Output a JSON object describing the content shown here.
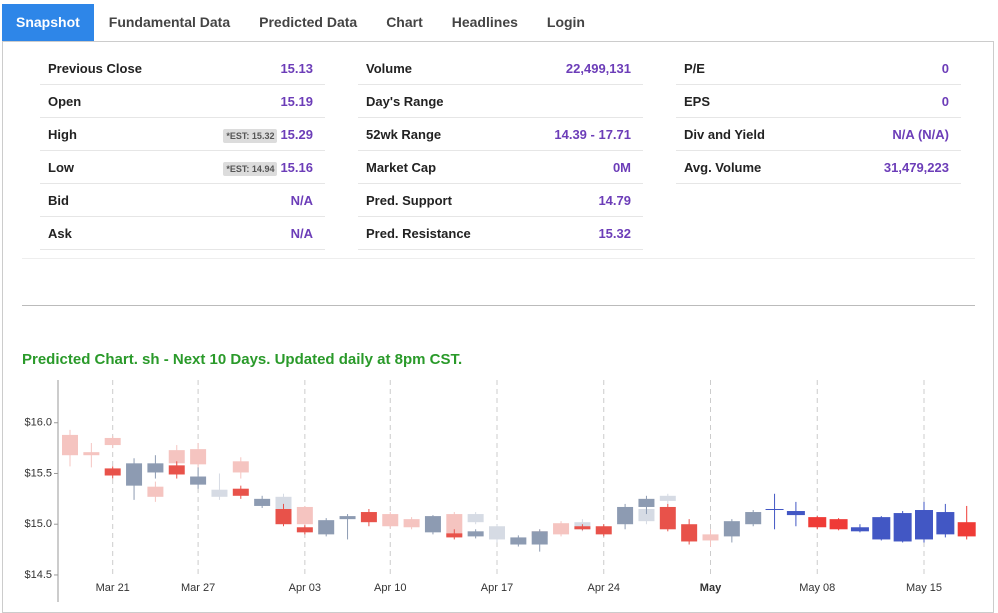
{
  "tabs": [
    "Snapshot",
    "Fundamental Data",
    "Predicted Data",
    "Chart",
    "Headlines",
    "Login"
  ],
  "active_tab": 0,
  "stats": [
    [
      {
        "label": "Previous Close",
        "value": "15.13"
      },
      {
        "label": "Open",
        "value": "15.19"
      },
      {
        "label": "High",
        "value": "15.29",
        "note": "*EST: 15.32"
      },
      {
        "label": "Low",
        "value": "15.16",
        "note": "*EST: 14.94"
      },
      {
        "label": "Bid",
        "value": "N/A"
      },
      {
        "label": "Ask",
        "value": "N/A"
      }
    ],
    [
      {
        "label": "Volume",
        "value": "22,499,131"
      },
      {
        "label": "Day's Range"
      },
      {
        "label": "52wk Range",
        "value": "14.39 - 17.71"
      },
      {
        "label": "Market Cap",
        "value": "0M"
      },
      {
        "label": "Pred. Support",
        "value": "14.79"
      },
      {
        "label": "Pred. Resistance",
        "value": "15.32"
      }
    ],
    [
      {
        "label": "P/E",
        "value": "0"
      },
      {
        "label": "EPS",
        "value": "0"
      },
      {
        "label": "Div and Yield",
        "value": "N/A (N/A)"
      },
      {
        "label": "Avg. Volume",
        "value": "31,479,223"
      }
    ]
  ],
  "chart_data": {
    "type": "candlestick",
    "title": "Predicted Chart. sh - Next 10 Days. Updated daily at 8pm CST.",
    "categories": [
      null,
      null,
      "Mar 21",
      null,
      null,
      null,
      "Mar 27",
      null,
      null,
      null,
      null,
      "Apr 03",
      null,
      null,
      null,
      "Apr 10",
      null,
      null,
      null,
      null,
      "Apr 17",
      null,
      null,
      null,
      null,
      "Apr 24",
      null,
      null,
      null,
      null,
      "May",
      null,
      null,
      null,
      null,
      "May 08",
      null,
      null,
      null,
      null,
      "May 15",
      null,
      null
    ],
    "bold_categories": [
      30
    ],
    "ylim": [
      14.47,
      16.5
    ],
    "yticks": [
      {
        "value": 14.5,
        "label": "$14.5"
      },
      {
        "value": 15.0,
        "label": "$15.0"
      },
      {
        "value": 15.5,
        "label": "$15.5"
      },
      {
        "value": 16.0,
        "label": "$16.0"
      }
    ],
    "series": [
      {
        "up_color": "#d6dbe4",
        "down_color": "#f5c4c0",
        "open": [
          15.88,
          15.71,
          15.85,
          null,
          15.37,
          15.73,
          15.74,
          15.27,
          15.62,
          null,
          15.15,
          15.17,
          null,
          null,
          null,
          15.1,
          15.05,
          null,
          15.1,
          15.02,
          14.85,
          null,
          14.93,
          15.01,
          14.95,
          null,
          null,
          15.03,
          15.23,
          null,
          14.9,
          null,
          null,
          null,
          null,
          null,
          null,
          null,
          null,
          null,
          null,
          null,
          null
        ],
        "high": [
          15.93,
          15.8,
          15.87,
          null,
          15.42,
          15.78,
          15.8,
          15.5,
          15.66,
          null,
          15.3,
          15.18,
          null,
          null,
          null,
          15.12,
          15.07,
          null,
          15.12,
          15.12,
          15.0,
          null,
          14.95,
          15.03,
          15.05,
          null,
          null,
          15.17,
          15.3,
          null,
          14.95,
          null,
          null,
          null,
          null,
          null,
          null,
          null,
          null,
          null,
          null,
          null,
          null
        ],
        "low": [
          15.57,
          15.56,
          15.75,
          null,
          15.22,
          15.55,
          15.55,
          15.24,
          15.45,
          null,
          15.12,
          14.95,
          null,
          null,
          null,
          14.96,
          14.95,
          null,
          14.86,
          15.0,
          14.82,
          null,
          14.86,
          14.88,
          14.93,
          null,
          null,
          15.0,
          15.2,
          null,
          14.78,
          null,
          null,
          null,
          null,
          null,
          null,
          null,
          null,
          null,
          null,
          null,
          null
        ],
        "close": [
          15.68,
          15.68,
          15.78,
          null,
          15.27,
          15.6,
          15.59,
          15.34,
          15.51,
          null,
          15.27,
          15.0,
          null,
          null,
          null,
          14.98,
          14.97,
          null,
          14.88,
          15.1,
          14.98,
          null,
          14.88,
          14.9,
          15.02,
          null,
          null,
          15.15,
          15.28,
          null,
          14.84,
          null,
          null,
          null,
          null,
          null,
          null,
          null,
          null,
          null,
          null,
          null,
          null
        ]
      },
      {
        "up_color": "#8d9bb2",
        "down_color": "#e8524a",
        "open": [
          null,
          null,
          15.55,
          15.38,
          15.51,
          15.58,
          15.39,
          null,
          15.35,
          15.18,
          15.15,
          14.97,
          14.9,
          15.05,
          15.12,
          null,
          null,
          14.92,
          14.91,
          14.88,
          null,
          14.8,
          14.8,
          null,
          14.98,
          14.98,
          15.0,
          15.17,
          15.17,
          15.0,
          null,
          14.88,
          15.0,
          null,
          null,
          null,
          null,
          null,
          null,
          null,
          null,
          null,
          null
        ],
        "high": [
          null,
          null,
          15.57,
          15.65,
          15.68,
          15.62,
          15.56,
          null,
          15.38,
          15.28,
          15.2,
          14.99,
          15.06,
          15.1,
          15.15,
          null,
          null,
          15.09,
          14.95,
          14.95,
          null,
          14.89,
          14.95,
          null,
          15.0,
          15.0,
          15.2,
          15.28,
          15.2,
          15.05,
          null,
          15.05,
          15.14,
          null,
          null,
          null,
          null,
          null,
          null,
          null,
          null,
          null,
          null
        ],
        "low": [
          null,
          null,
          15.45,
          15.24,
          15.45,
          15.45,
          15.35,
          null,
          15.25,
          15.16,
          14.98,
          14.9,
          14.88,
          14.85,
          14.98,
          null,
          null,
          14.9,
          14.85,
          14.86,
          null,
          14.78,
          14.73,
          null,
          14.94,
          14.88,
          14.95,
          15.1,
          14.93,
          14.8,
          null,
          14.82,
          14.98,
          null,
          null,
          null,
          null,
          null,
          null,
          null,
          null,
          null,
          null
        ],
        "close": [
          null,
          null,
          15.48,
          15.6,
          15.6,
          15.49,
          15.47,
          null,
          15.28,
          15.25,
          15.0,
          14.92,
          15.04,
          15.08,
          15.02,
          null,
          null,
          15.08,
          14.87,
          14.93,
          null,
          14.87,
          14.93,
          null,
          14.95,
          14.9,
          15.17,
          15.25,
          14.95,
          14.83,
          null,
          15.03,
          15.12,
          null,
          null,
          null,
          null,
          null,
          null,
          null,
          null,
          null,
          null
        ]
      },
      {
        "up_color": "#4257c4",
        "down_color": "#ef3b36",
        "open": [
          null,
          null,
          null,
          null,
          null,
          null,
          null,
          null,
          null,
          null,
          null,
          null,
          null,
          null,
          null,
          null,
          null,
          null,
          null,
          null,
          null,
          null,
          null,
          null,
          null,
          null,
          null,
          null,
          null,
          null,
          null,
          null,
          null,
          15.14,
          15.09,
          15.07,
          15.05,
          14.93,
          14.85,
          14.83,
          14.85,
          14.9,
          15.02
        ],
        "high": [
          null,
          null,
          null,
          null,
          null,
          null,
          null,
          null,
          null,
          null,
          null,
          null,
          null,
          null,
          null,
          null,
          null,
          null,
          null,
          null,
          null,
          null,
          null,
          null,
          null,
          null,
          null,
          null,
          null,
          null,
          null,
          null,
          null,
          15.3,
          15.22,
          15.08,
          15.06,
          15.0,
          15.08,
          15.13,
          15.22,
          15.2,
          15.18
        ],
        "low": [
          null,
          null,
          null,
          null,
          null,
          null,
          null,
          null,
          null,
          null,
          null,
          null,
          null,
          null,
          null,
          null,
          null,
          null,
          null,
          null,
          null,
          null,
          null,
          null,
          null,
          null,
          null,
          null,
          null,
          null,
          null,
          null,
          null,
          14.95,
          14.98,
          14.95,
          14.94,
          14.92,
          14.84,
          14.82,
          14.82,
          14.87,
          14.85
        ],
        "close": [
          null,
          null,
          null,
          null,
          null,
          null,
          null,
          null,
          null,
          null,
          null,
          null,
          null,
          null,
          null,
          null,
          null,
          null,
          null,
          null,
          null,
          null,
          null,
          null,
          null,
          null,
          null,
          null,
          null,
          null,
          null,
          null,
          null,
          15.15,
          15.13,
          14.97,
          14.95,
          14.97,
          15.07,
          15.11,
          15.14,
          15.12,
          14.88
        ]
      }
    ]
  }
}
